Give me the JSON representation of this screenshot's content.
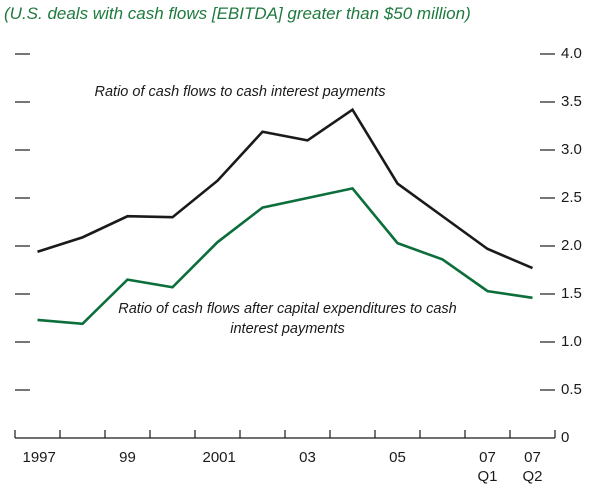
{
  "chart_data": {
    "type": "line",
    "subtitle": "(U.S. deals with cash flows [EBITDA] greater than $50 million)",
    "categories": [
      "1997",
      null,
      "99",
      null,
      "2001",
      null,
      "03",
      null,
      "05",
      null,
      "07 Q1",
      "07 Q2"
    ],
    "series": [
      {
        "name": "Ratio of cash flows to cash interest payments",
        "color": "#1a1a1a",
        "values": [
          1.94,
          2.09,
          2.31,
          2.3,
          2.68,
          3.19,
          3.1,
          3.42,
          2.65,
          2.31,
          1.97,
          1.77
        ]
      },
      {
        "name": "Ratio of cash flows after capital expenditures to cash interest payments",
        "color": "#0b6e3b",
        "values": [
          1.23,
          1.19,
          1.65,
          1.57,
          2.04,
          2.4,
          2.5,
          2.6,
          2.03,
          1.86,
          1.53,
          1.46
        ]
      }
    ],
    "ylim": [
      0,
      4
    ],
    "yticks": [
      0,
      0.5,
      {
        "value": 1,
        "label": "1.0"
      },
      1.5,
      {
        "value": 2,
        "label": "2.0"
      },
      2.5,
      {
        "value": 3,
        "label": "3.0"
      },
      3.5,
      {
        "value": 4,
        "label": "4.0"
      }
    ]
  }
}
